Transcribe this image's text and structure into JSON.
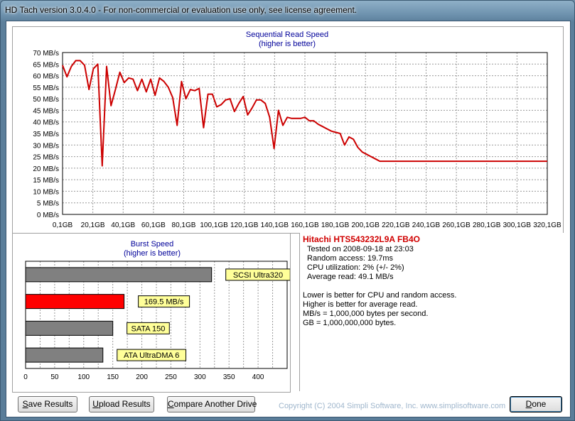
{
  "window": {
    "title": "HD Tach version 3.0.4.0  - For non-commercial or evaluation use only, see license agreement."
  },
  "colors": {
    "line": "#cc0000",
    "bar_gray": "#808080",
    "bar_red": "#ff0000",
    "label_bg": "#ffff99",
    "title_blue": "#000099"
  },
  "sequential": {
    "title_line1": "Sequential Read Speed",
    "title_line2": "(higher is better)"
  },
  "burst": {
    "title_line1": "Burst Speed",
    "title_line2": "(higher is better)"
  },
  "info": {
    "drive": "Hitachi HTS543232L9A FB4O",
    "tested": "Tested on 2008-09-18 at 23:03",
    "random_access": "Random access: 19.7ms",
    "cpu": "CPU utilization: 2% (+/- 2%)",
    "average_read": "Average read: 49.1 MB/s",
    "note1": "Lower is better for CPU and random access.",
    "note2": "Higher is better for average read.",
    "note3": "MB/s = 1,000,000 bytes per second.",
    "note4": "GB = 1,000,000,000 bytes."
  },
  "buttons": {
    "save_u": "S",
    "save_rest": "ave Results",
    "upload_u": "U",
    "upload_rest": "pload Results",
    "compare_u": "C",
    "compare_rest": "ompare Another Drive",
    "done_u": "D",
    "done_rest": "one"
  },
  "copyright": "Copyright (C) 2004 Simpli Software, Inc. www.simplisoftware.com",
  "chart_data": [
    {
      "type": "line",
      "title": "Sequential Read Speed",
      "subtitle": "(higher is better)",
      "xlabel": "",
      "ylabel": "",
      "ylim": [
        0,
        70
      ],
      "xlim": [
        0,
        330
      ],
      "yticks": [
        "0 MB/s",
        "5 MB/s",
        "10 MB/s",
        "15 MB/s",
        "20 MB/s",
        "25 MB/s",
        "30 MB/s",
        "35 MB/s",
        "40 MB/s",
        "45 MB/s",
        "50 MB/s",
        "55 MB/s",
        "60 MB/s",
        "65 MB/s",
        "70 MB/s"
      ],
      "xticks": [
        "0,1GB",
        "20,1GB",
        "40,1GB",
        "60,1GB",
        "80,1GB",
        "100,1GB",
        "120,1GB",
        "140,1GB",
        "160,1GB",
        "180,1GB",
        "200,1GB",
        "220,1GB",
        "240,1GB",
        "260,1GB",
        "280,1GB",
        "300,1GB",
        "320,1GB"
      ],
      "grid": true,
      "x": [
        0,
        3,
        6,
        9,
        12,
        15,
        18,
        21,
        24,
        27,
        30,
        33,
        36,
        39,
        42,
        45,
        48,
        51,
        54,
        57,
        60,
        63,
        66,
        69,
        72,
        75,
        78,
        81,
        84,
        87,
        90,
        93,
        96,
        99,
        102,
        105,
        108,
        111,
        114,
        117,
        120,
        123,
        126,
        129,
        132,
        135,
        138,
        141,
        144,
        147,
        150,
        153,
        156,
        159,
        162,
        165,
        168,
        171,
        174,
        177,
        180,
        183,
        186,
        189,
        192,
        195,
        198,
        201,
        204,
        207,
        210,
        213,
        216,
        219,
        222,
        225,
        228,
        231,
        234,
        237,
        240,
        243,
        246,
        249,
        252,
        255,
        258,
        261,
        264,
        267,
        270,
        273,
        276,
        279,
        282,
        285,
        288,
        291,
        294,
        297,
        300,
        303,
        306,
        309,
        312,
        315,
        318,
        321,
        324,
        327,
        330
      ],
      "values": [
        64.5,
        59.5,
        64,
        66.5,
        66.5,
        64.5,
        54,
        63,
        65,
        21,
        64,
        47,
        54,
        61.5,
        57,
        59,
        58.5,
        53.5,
        58.5,
        53,
        58.5,
        51.5,
        59,
        57.5,
        55,
        50.5,
        38.5,
        57.5,
        50,
        54,
        53.5,
        54.5,
        37.5,
        52,
        52,
        46.5,
        47.5,
        49.5,
        50,
        44.5,
        48,
        51,
        43,
        46,
        49.5,
        49.5,
        48,
        42,
        28.5,
        45,
        38.5,
        42,
        41.5,
        41.5,
        41.5,
        42,
        40.5,
        40.5,
        39,
        38,
        37,
        36,
        35.5,
        35,
        30,
        33.5,
        32.5,
        29,
        27,
        26,
        25,
        24,
        23,
        23,
        23,
        23,
        23,
        23,
        23,
        23,
        23,
        23,
        23,
        23,
        23,
        23,
        23,
        23,
        23,
        23,
        23,
        23,
        23,
        23,
        23,
        23,
        23,
        23,
        23,
        23,
        23,
        23,
        23,
        23,
        23,
        23,
        23,
        23,
        23,
        23,
        23
      ]
    },
    {
      "type": "bar",
      "orientation": "horizontal",
      "title": "Burst Speed",
      "subtitle": "(higher is better)",
      "xlim": [
        0,
        450
      ],
      "xticks": [
        "0",
        "50",
        "100",
        "150",
        "200",
        "250",
        "300",
        "350",
        "400"
      ],
      "grid": true,
      "categories": [
        "SCSI Ultra320",
        "169.5 MB/s",
        "SATA 150",
        "ATA UltraDMA 6"
      ],
      "values": [
        320,
        169.5,
        150,
        133
      ],
      "bar_colors": [
        "#808080",
        "#ff0000",
        "#808080",
        "#808080"
      ]
    }
  ]
}
